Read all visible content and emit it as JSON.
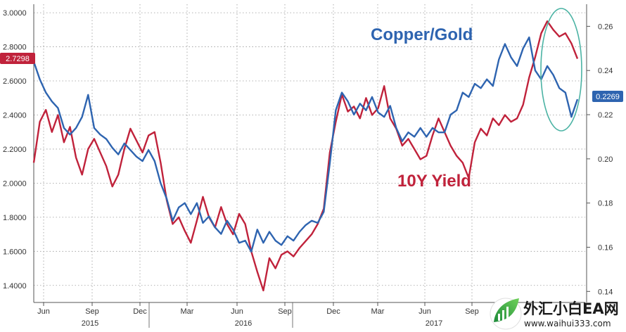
{
  "chart_data": {
    "type": "line",
    "x_axis": {
      "month_labels": [
        "Jun",
        "Sep",
        "Dec",
        "Mar",
        "Jun",
        "Sep",
        "Dec",
        "Mar",
        "Jun",
        "Sep"
      ],
      "year_labels": [
        "2015",
        "2016",
        "2017"
      ],
      "range": [
        "2015-05",
        "2017-11"
      ]
    },
    "y_left": {
      "ticks": [
        "1.4000",
        "1.6000",
        "1.8000",
        "2.0000",
        "2.2000",
        "2.4000",
        "2.6000",
        "2.8000",
        "3.0000"
      ],
      "ylim": [
        1.3,
        3.05
      ]
    },
    "y_right": {
      "ticks": [
        "0.14",
        "0.16",
        "0.18",
        "0.20",
        "0.22",
        "0.24",
        "0.26"
      ],
      "ylim": [
        0.135,
        0.27
      ]
    },
    "series": [
      {
        "name": "10Y Yield",
        "axis": "left",
        "color": "#c0223b",
        "last_value_label": "2.7298",
        "points": [
          [
            0,
            2.12
          ],
          [
            1,
            2.36
          ],
          [
            2,
            2.43
          ],
          [
            3,
            2.3
          ],
          [
            4,
            2.4
          ],
          [
            5,
            2.24
          ],
          [
            6,
            2.33
          ],
          [
            7,
            2.15
          ],
          [
            8,
            2.05
          ],
          [
            9,
            2.2
          ],
          [
            10,
            2.26
          ],
          [
            11,
            2.18
          ],
          [
            12,
            2.1
          ],
          [
            13,
            1.98
          ],
          [
            14,
            2.05
          ],
          [
            15,
            2.2
          ],
          [
            16,
            2.32
          ],
          [
            17,
            2.25
          ],
          [
            18,
            2.18
          ],
          [
            19,
            2.28
          ],
          [
            20,
            2.3
          ],
          [
            21,
            2.12
          ],
          [
            22,
            1.9
          ],
          [
            23,
            1.76
          ],
          [
            24,
            1.8
          ],
          [
            25,
            1.72
          ],
          [
            26,
            1.65
          ],
          [
            27,
            1.78
          ],
          [
            28,
            1.92
          ],
          [
            29,
            1.8
          ],
          [
            30,
            1.74
          ],
          [
            31,
            1.86
          ],
          [
            32,
            1.76
          ],
          [
            33,
            1.7
          ],
          [
            34,
            1.82
          ],
          [
            35,
            1.76
          ],
          [
            36,
            1.6
          ],
          [
            37,
            1.48
          ],
          [
            38,
            1.37
          ],
          [
            39,
            1.56
          ],
          [
            40,
            1.5
          ],
          [
            41,
            1.58
          ],
          [
            42,
            1.6
          ],
          [
            43,
            1.57
          ],
          [
            44,
            1.62
          ],
          [
            45,
            1.66
          ],
          [
            46,
            1.7
          ],
          [
            47,
            1.76
          ],
          [
            48,
            1.85
          ],
          [
            49,
            2.18
          ],
          [
            50,
            2.36
          ],
          [
            51,
            2.52
          ],
          [
            52,
            2.42
          ],
          [
            53,
            2.45
          ],
          [
            54,
            2.38
          ],
          [
            55,
            2.5
          ],
          [
            56,
            2.4
          ],
          [
            57,
            2.44
          ],
          [
            58,
            2.57
          ],
          [
            59,
            2.38
          ],
          [
            60,
            2.32
          ],
          [
            61,
            2.22
          ],
          [
            62,
            2.26
          ],
          [
            63,
            2.2
          ],
          [
            64,
            2.14
          ],
          [
            65,
            2.16
          ],
          [
            66,
            2.28
          ],
          [
            67,
            2.38
          ],
          [
            68,
            2.3
          ],
          [
            69,
            2.22
          ],
          [
            70,
            2.16
          ],
          [
            71,
            2.12
          ],
          [
            72,
            2.03
          ],
          [
            73,
            2.24
          ],
          [
            74,
            2.32
          ],
          [
            75,
            2.28
          ],
          [
            76,
            2.38
          ],
          [
            77,
            2.34
          ],
          [
            78,
            2.4
          ],
          [
            79,
            2.36
          ],
          [
            80,
            2.38
          ],
          [
            81,
            2.46
          ],
          [
            82,
            2.62
          ],
          [
            83,
            2.74
          ],
          [
            84,
            2.88
          ],
          [
            85,
            2.95
          ],
          [
            86,
            2.9
          ],
          [
            87,
            2.86
          ],
          [
            88,
            2.88
          ],
          [
            89,
            2.82
          ],
          [
            90,
            2.73
          ]
        ]
      },
      {
        "name": "Copper/Gold",
        "axis": "right",
        "color": "#2e64b0",
        "last_value_label": "0.2269",
        "points": [
          [
            0,
            0.244
          ],
          [
            1,
            0.236
          ],
          [
            2,
            0.23
          ],
          [
            3,
            0.226
          ],
          [
            4,
            0.223
          ],
          [
            5,
            0.214
          ],
          [
            6,
            0.211
          ],
          [
            7,
            0.214
          ],
          [
            8,
            0.219
          ],
          [
            9,
            0.229
          ],
          [
            10,
            0.214
          ],
          [
            11,
            0.211
          ],
          [
            12,
            0.209
          ],
          [
            13,
            0.205
          ],
          [
            14,
            0.202
          ],
          [
            15,
            0.207
          ],
          [
            16,
            0.204
          ],
          [
            17,
            0.201
          ],
          [
            18,
            0.199
          ],
          [
            19,
            0.204
          ],
          [
            20,
            0.199
          ],
          [
            21,
            0.189
          ],
          [
            22,
            0.182
          ],
          [
            23,
            0.172
          ],
          [
            24,
            0.178
          ],
          [
            25,
            0.18
          ],
          [
            26,
            0.175
          ],
          [
            27,
            0.18
          ],
          [
            28,
            0.171
          ],
          [
            29,
            0.174
          ],
          [
            30,
            0.169
          ],
          [
            31,
            0.166
          ],
          [
            32,
            0.172
          ],
          [
            33,
            0.168
          ],
          [
            34,
            0.162
          ],
          [
            35,
            0.163
          ],
          [
            36,
            0.158
          ],
          [
            37,
            0.168
          ],
          [
            38,
            0.162
          ],
          [
            39,
            0.167
          ],
          [
            40,
            0.163
          ],
          [
            41,
            0.161
          ],
          [
            42,
            0.165
          ],
          [
            43,
            0.163
          ],
          [
            44,
            0.167
          ],
          [
            45,
            0.17
          ],
          [
            46,
            0.172
          ],
          [
            47,
            0.171
          ],
          [
            48,
            0.176
          ],
          [
            49,
            0.198
          ],
          [
            50,
            0.222
          ],
          [
            51,
            0.23
          ],
          [
            52,
            0.226
          ],
          [
            53,
            0.22
          ],
          [
            54,
            0.225
          ],
          [
            55,
            0.222
          ],
          [
            56,
            0.228
          ],
          [
            57,
            0.221
          ],
          [
            58,
            0.219
          ],
          [
            59,
            0.224
          ],
          [
            60,
            0.214
          ],
          [
            61,
            0.208
          ],
          [
            62,
            0.212
          ],
          [
            63,
            0.21
          ],
          [
            64,
            0.214
          ],
          [
            65,
            0.21
          ],
          [
            66,
            0.214
          ],
          [
            67,
            0.212
          ],
          [
            68,
            0.212
          ],
          [
            69,
            0.22
          ],
          [
            70,
            0.222
          ],
          [
            71,
            0.23
          ],
          [
            72,
            0.228
          ],
          [
            73,
            0.234
          ],
          [
            74,
            0.232
          ],
          [
            75,
            0.236
          ],
          [
            76,
            0.233
          ],
          [
            77,
            0.245
          ],
          [
            78,
            0.252
          ],
          [
            79,
            0.246
          ],
          [
            80,
            0.242
          ],
          [
            81,
            0.25
          ],
          [
            82,
            0.255
          ],
          [
            83,
            0.24
          ],
          [
            84,
            0.236
          ],
          [
            85,
            0.242
          ],
          [
            86,
            0.238
          ],
          [
            87,
            0.232
          ],
          [
            88,
            0.23
          ],
          [
            89,
            0.219
          ],
          [
            90,
            0.227
          ]
        ]
      }
    ],
    "grid": true,
    "annotation": "ellipse highlighting recent divergence (Copper/Gold falling, 10Y Yield rising)"
  },
  "watermark": {
    "text": "外汇小白EA网",
    "url": "www.waihui333.com"
  }
}
